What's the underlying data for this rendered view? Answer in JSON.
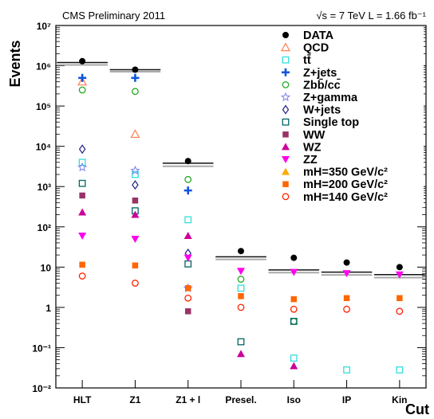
{
  "chart_data": {
    "type": "scatter",
    "header_left": "CMS Preliminary 2011",
    "header_right": "√s = 7 TeV  L = 1.66 fb⁻¹",
    "xlabel": "Cut",
    "ylabel": "Events",
    "y_scale": "log",
    "ylim": [
      0.01,
      10000000
    ],
    "y_tick_labels": [
      "10⁻²",
      "10⁻¹",
      "1",
      "10",
      "10²",
      "10³",
      "10⁴",
      "10⁵",
      "10⁶",
      "10⁷"
    ],
    "categories": [
      "HLT",
      "Z1",
      "Z1 + l",
      "Presel.",
      "Iso",
      "IP",
      "Kin"
    ],
    "legend_position": "top-right",
    "mc_totals": {
      "dark": [
        1200000,
        800000,
        3800,
        18,
        8.5,
        7.5,
        6.5
      ],
      "light": [
        1150000,
        780000,
        3500,
        17,
        8.0,
        7.0,
        6.0
      ]
    },
    "series": [
      {
        "name": "DATA",
        "marker": "dot",
        "color": "#000000",
        "values": [
          1300000,
          800000,
          4300,
          25,
          17,
          13,
          10
        ]
      },
      {
        "name": "QCD",
        "marker": "tri-up-open",
        "color": "#ff7f50",
        "values": [
          400000,
          20000,
          null,
          null,
          null,
          null,
          null
        ]
      },
      {
        "name": "tt̄",
        "marker": "square-open",
        "color": "#33dddd",
        "values": [
          4000,
          2000,
          150,
          3,
          0.055,
          0.028,
          0.028
        ]
      },
      {
        "name": "Z+jets",
        "marker": "cross",
        "color": "#1155dd",
        "values": [
          500000,
          500000,
          800,
          null,
          null,
          null,
          null
        ]
      },
      {
        "name": "Zbb̄/cc̄",
        "marker": "circle-open",
        "color": "#22aa22",
        "values": [
          250000,
          230000,
          1500,
          5,
          0.45,
          null,
          null
        ]
      },
      {
        "name": "Z+gamma",
        "marker": "star-open",
        "color": "#8888ee",
        "values": [
          3000,
          2500,
          3,
          null,
          null,
          null,
          null
        ]
      },
      {
        "name": "W+jets",
        "marker": "diamond-open",
        "color": "#222288",
        "values": [
          8500,
          1100,
          22,
          null,
          null,
          null,
          null
        ]
      },
      {
        "name": "Single top",
        "marker": "square-open",
        "color": "#006666",
        "values": [
          1200,
          250,
          12,
          0.14,
          0.45,
          null,
          null
        ]
      },
      {
        "name": "WW",
        "marker": "square",
        "color": "#993366",
        "values": [
          600,
          450,
          0.8,
          null,
          null,
          null,
          null
        ]
      },
      {
        "name": "WZ",
        "marker": "tri-up",
        "color": "#cc0099",
        "values": [
          230,
          200,
          60,
          0.07,
          0.035,
          null,
          null
        ]
      },
      {
        "name": "ZZ",
        "marker": "tri-down",
        "color": "#ff00ee",
        "values": [
          60,
          50,
          17,
          8,
          7.5,
          7,
          6.5
        ]
      },
      {
        "name": "mH=350 GeV/c²",
        "marker": "tri-up",
        "color": "#ffaa00",
        "values": [
          null,
          null,
          null,
          null,
          null,
          null,
          null
        ]
      },
      {
        "name": "mH=200 GeV/c²",
        "marker": "square",
        "color": "#ff6600",
        "values": [
          11.5,
          11,
          3,
          1.9,
          1.6,
          1.7,
          1.7
        ]
      },
      {
        "name": "mH=140 GeV/c²",
        "marker": "circle-open",
        "color": "#ff2200",
        "values": [
          6,
          4,
          1.7,
          1,
          0.9,
          0.9,
          0.8
        ]
      }
    ]
  }
}
